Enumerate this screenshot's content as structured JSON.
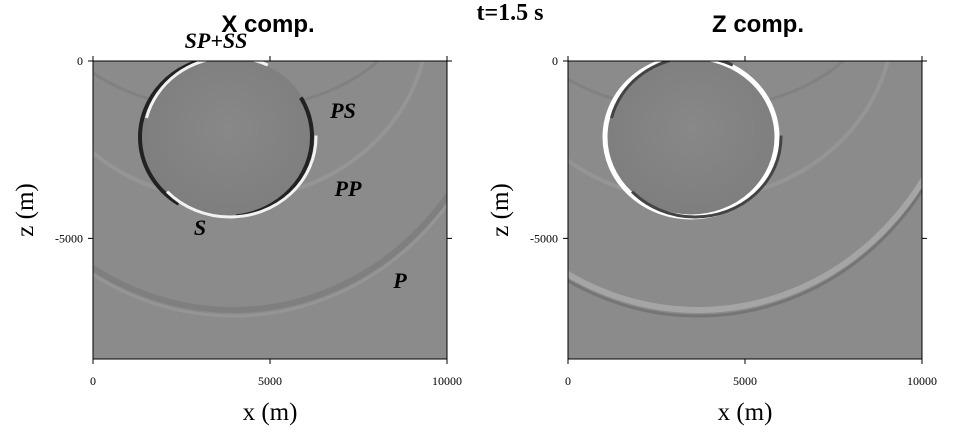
{
  "title": "t=1.5 s",
  "chart_data": [
    {
      "type": "image",
      "title": "X comp.",
      "x_label": "x (m)",
      "y_label": "z (m)",
      "xlim": [
        0,
        10000
      ],
      "ylim": [
        -8400,
        0
      ],
      "xticks": [
        0,
        5000,
        10000
      ],
      "yticks": [
        0,
        -5000
      ],
      "annotations": [
        "SP+SS",
        "PS",
        "PP",
        "S",
        "P"
      ]
    },
    {
      "type": "image",
      "title": "Z comp.",
      "x_label": "x (m)",
      "y_label": "z (m)",
      "xlim": [
        0,
        10000
      ],
      "ylim": [
        -8400,
        0
      ],
      "xticks": [
        0,
        5000,
        10000
      ],
      "yticks": [
        0,
        -5000
      ]
    }
  ]
}
